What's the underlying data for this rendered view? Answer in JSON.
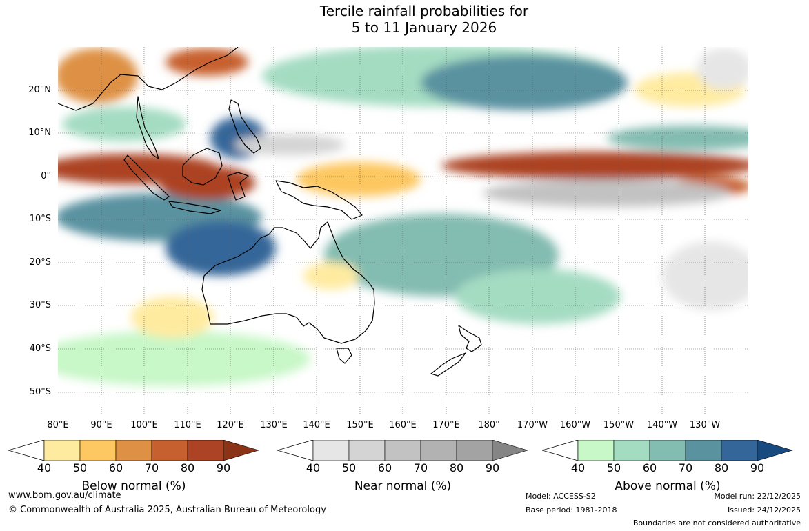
{
  "title": {
    "line1": "Tercile rainfall probabilities for",
    "line2": "5 to 11 January 2026"
  },
  "map": {
    "lat_labels": [
      "20°N",
      "10°N",
      "0°",
      "10°S",
      "20°S",
      "30°S",
      "40°S",
      "50°S"
    ],
    "lon_labels": [
      "80°E",
      "90°E",
      "100°E",
      "110°E",
      "120°E",
      "130°E",
      "140°E",
      "150°E",
      "160°E",
      "170°E",
      "180°",
      "170°W",
      "160°W",
      "150°W",
      "140°W",
      "130°W"
    ]
  },
  "colorbars": [
    {
      "name": "below",
      "label": "Below normal (%)",
      "ticks": [
        "40",
        "50",
        "60",
        "70",
        "80",
        "90"
      ],
      "colors": [
        "#ffeba0",
        "#fdc761",
        "#de9144",
        "#c7602f",
        "#ac4324",
        "#8a3316"
      ]
    },
    {
      "name": "near",
      "label": "Near normal (%)",
      "ticks": [
        "40",
        "50",
        "60",
        "70",
        "80",
        "90"
      ],
      "colors": [
        "#e6e6e6",
        "#d4d4d4",
        "#c2c2c2",
        "#b2b2b2",
        "#a3a3a3",
        "#858585"
      ]
    },
    {
      "name": "above",
      "label": "Above normal (%)",
      "ticks": [
        "40",
        "50",
        "60",
        "70",
        "80",
        "90"
      ],
      "colors": [
        "#c8f7c8",
        "#a4dcc2",
        "#83bcb1",
        "#5a92a0",
        "#356699",
        "#184a80"
      ]
    }
  ],
  "footer": {
    "url": "www.bom.gov.au/climate",
    "copyright": "© Commonwealth of Australia 2025, Australian Bureau of Meteorology",
    "model": "Model: ACCESS-S2",
    "base_period": "Base period: 1981-2018",
    "model_run": "Model run: 22/12/2025",
    "issued": "Issued: 24/12/2025",
    "disclaimer": "Boundaries are not considered authoritative"
  }
}
